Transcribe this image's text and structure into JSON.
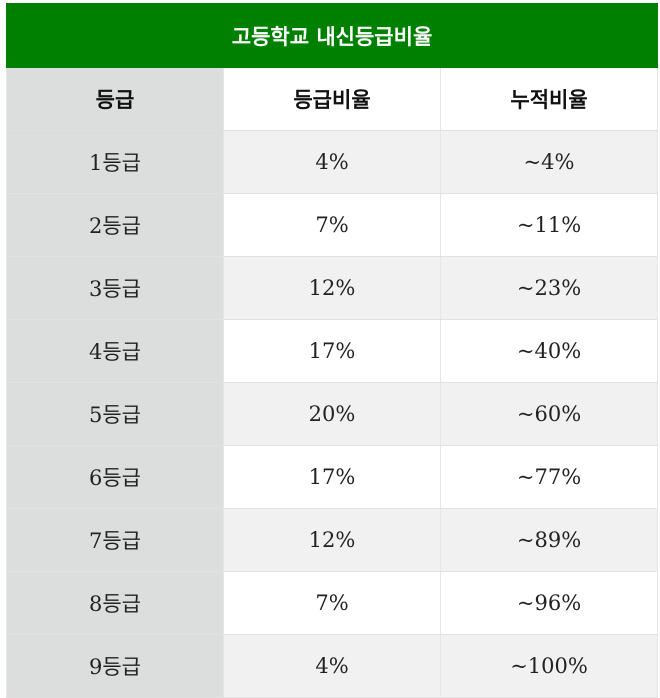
{
  "title": "고등학교 내신등급비율",
  "headers": [
    "등급",
    "등급비율",
    "누적비율"
  ],
  "rows": [
    {
      "grade": "1등급",
      "ratio": "4%",
      "cumulative": "~4%"
    },
    {
      "grade": "2등급",
      "ratio": "7%",
      "cumulative": "~11%"
    },
    {
      "grade": "3등급",
      "ratio": "12%",
      "cumulative": "~23%"
    },
    {
      "grade": "4등급",
      "ratio": "17%",
      "cumulative": "~40%"
    },
    {
      "grade": "5등급",
      "ratio": "20%",
      "cumulative": "~60%"
    },
    {
      "grade": "6등급",
      "ratio": "17%",
      "cumulative": "~77%"
    },
    {
      "grade": "7등급",
      "ratio": "12%",
      "cumulative": "~89%"
    },
    {
      "grade": "8등급",
      "ratio": "7%",
      "cumulative": "~96%"
    },
    {
      "grade": "9등급",
      "ratio": "4%",
      "cumulative": "~100%"
    }
  ],
  "colors": {
    "title_bg": "#008000",
    "grade_col_bg": "#dcdedd",
    "stripe_bg": "#f1f1f1"
  }
}
